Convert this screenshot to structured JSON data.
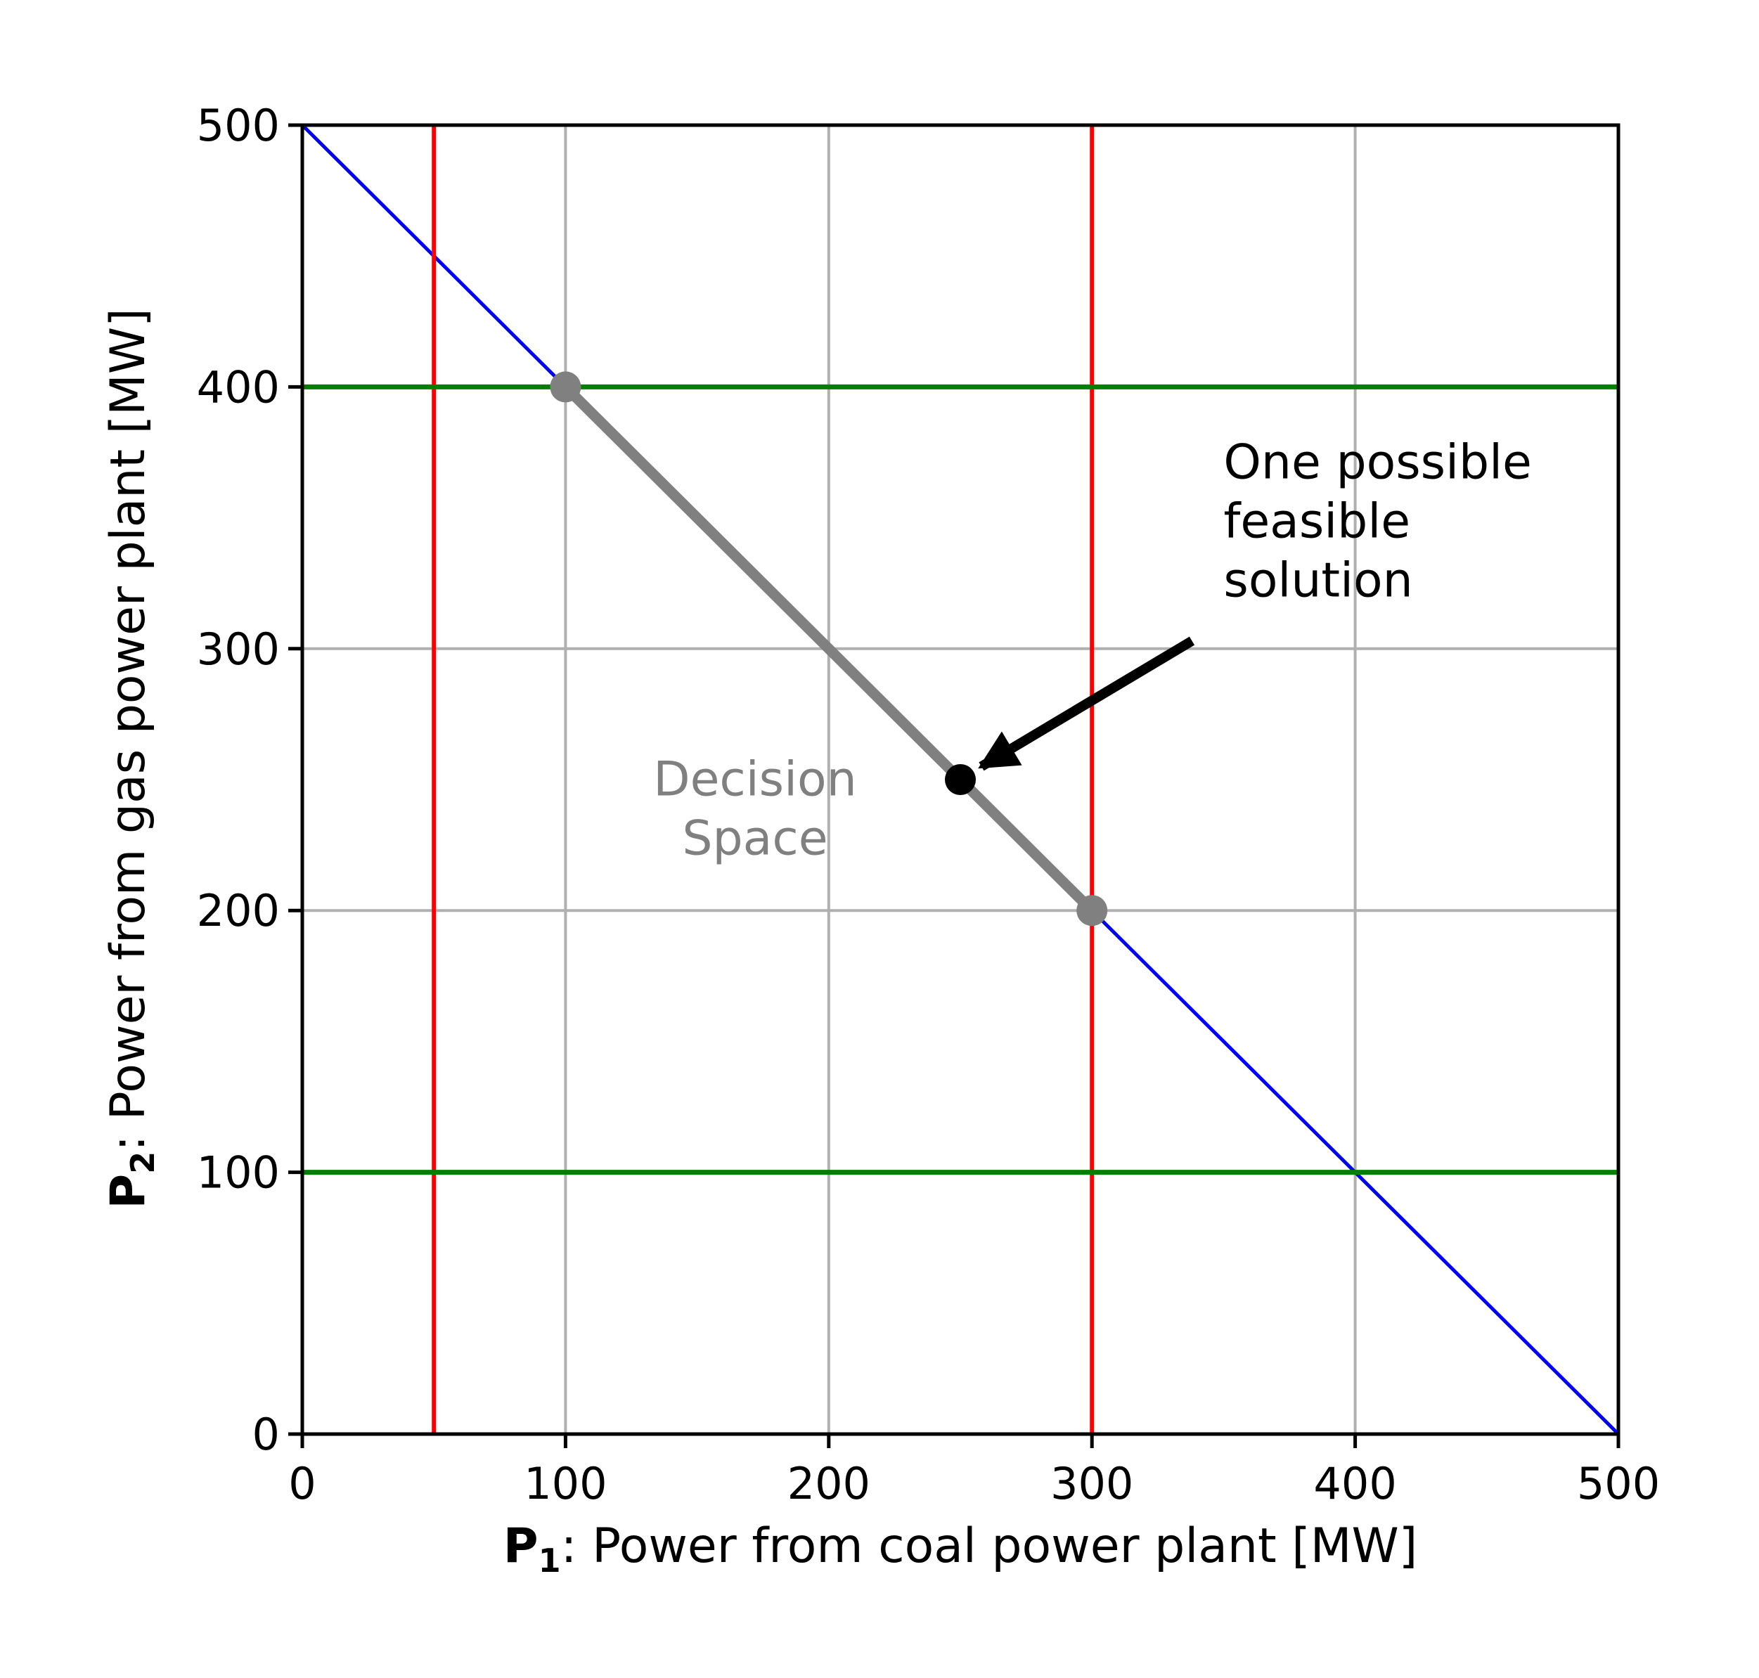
{
  "chart_data": {
    "type": "line",
    "xlim": [
      0,
      500
    ],
    "ylim": [
      0,
      500
    ],
    "xticks": [
      0,
      100,
      200,
      300,
      400,
      500
    ],
    "yticks": [
      0,
      100,
      200,
      300,
      400,
      500
    ],
    "grid": true,
    "xlabel": {
      "symbol": "P",
      "subscript": "1",
      "rest": ": Power from coal power plant [MW]"
    },
    "ylabel": {
      "symbol": "P",
      "subscript": "2",
      "rest": ": Power from gas power plant [MW]"
    },
    "colors": {
      "grid": "#b0b0b0",
      "demand": "#0000ff",
      "p1_limits": "#ff0000",
      "p2_limits": "#008000",
      "feasible": "#808080",
      "point": "#000000"
    },
    "series": [
      {
        "kind": "line",
        "color": "blue",
        "x": [
          0,
          500
        ],
        "y": [
          500,
          0
        ]
      },
      {
        "kind": "vline",
        "color": "red",
        "x": 50
      },
      {
        "kind": "vline",
        "color": "red",
        "x": 300
      },
      {
        "kind": "hline",
        "color": "green",
        "y": 100
      },
      {
        "kind": "hline",
        "color": "green",
        "y": 400
      },
      {
        "kind": "segment",
        "color": "gray",
        "x": [
          100,
          300
        ],
        "y": [
          400,
          200
        ],
        "endpoints": true
      }
    ],
    "point": {
      "x": 250,
      "y": 250
    },
    "annotations": [
      {
        "lines": [
          "One possible",
          "feasible",
          "solution"
        ],
        "x": 350,
        "y": 365,
        "arrow_from": [
          338,
          303
        ],
        "arrow_to": [
          258,
          255
        ]
      },
      {
        "lines": [
          "Decision",
          "Space"
        ],
        "x": 172,
        "y": 244
      }
    ]
  }
}
